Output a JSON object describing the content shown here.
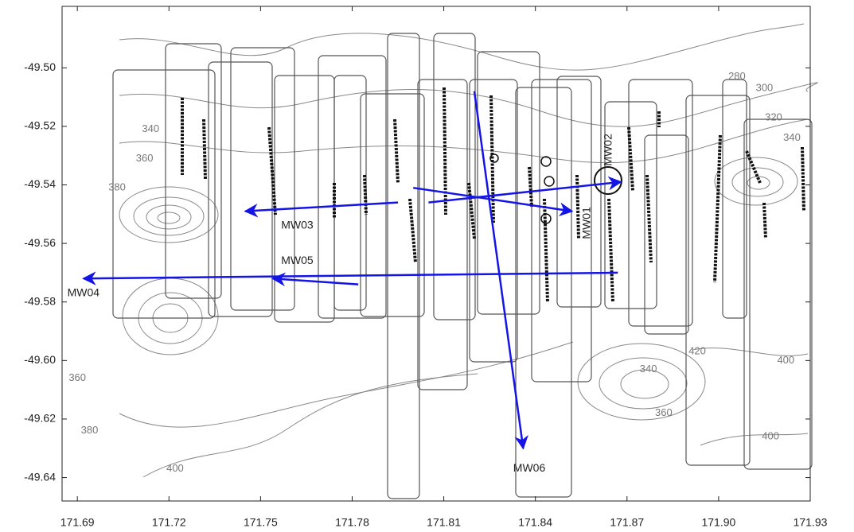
{
  "chart_data": {
    "type": "map",
    "xlim": [
      171.685,
      171.93
    ],
    "ylim": [
      -49.648,
      -49.479
    ],
    "xticks": [
      171.69,
      171.72,
      171.75,
      171.78,
      171.81,
      171.84,
      171.87,
      {
        "value": 171.9,
        "label": "171.90"
      },
      171.93
    ],
    "yticks": [
      {
        "value": -49.5,
        "label": "-49.50"
      },
      -49.52,
      -49.54,
      -49.56,
      -49.58,
      {
        "value": -49.6,
        "label": "-49.60"
      },
      -49.62,
      -49.64
    ],
    "arrow_color": "#1414e6",
    "arrows": [
      {
        "label": "MW01",
        "x0": 171.8,
        "y0": -49.541,
        "x1": 171.852,
        "y1": -49.549,
        "label_x": 171.857,
        "label_y": -49.553,
        "rotate": true
      },
      {
        "label": "MW02",
        "x0": 171.805,
        "y0": -49.546,
        "x1": 171.868,
        "y1": -49.539,
        "label_x": 171.864,
        "label_y": -49.528,
        "rotate": true
      },
      {
        "label": "MW03",
        "x0": 171.795,
        "y0": -49.546,
        "x1": 171.745,
        "y1": -49.549,
        "label_x": 171.762,
        "label_y": -49.554,
        "rotate": false
      },
      {
        "label": "MW04",
        "x0": 171.867,
        "y0": -49.57,
        "x1": 171.692,
        "y1": -49.572,
        "label_x": 171.692,
        "label_y": -49.577,
        "rotate": false
      },
      {
        "label": "MW05",
        "x0": 171.782,
        "y0": -49.574,
        "x1": 171.754,
        "y1": -49.572,
        "label_x": 171.762,
        "label_y": -49.566,
        "rotate": false
      },
      {
        "label": "MW06",
        "x0": 171.82,
        "y0": -49.508,
        "x1": 171.836,
        "y1": -49.63,
        "label_x": 171.838,
        "label_y": -49.637,
        "rotate": false
      }
    ],
    "contour_labels": [
      {
        "label": 280,
        "x": 171.906,
        "y": -49.503
      },
      {
        "label": 300,
        "x": 171.915,
        "y": -49.507
      },
      {
        "label": 320,
        "x": 171.918,
        "y": -49.517
      },
      {
        "label": 340,
        "x": 171.924,
        "y": -49.524
      },
      {
        "label": 340,
        "x": 171.714,
        "y": -49.521
      },
      {
        "label": 360,
        "x": 171.712,
        "y": -49.531
      },
      {
        "label": 380,
        "x": 171.703,
        "y": -49.541
      },
      {
        "label": 360,
        "x": 171.69,
        "y": -49.606
      },
      {
        "label": 380,
        "x": 171.694,
        "y": -49.624
      },
      {
        "label": 400,
        "x": 171.722,
        "y": -49.637
      },
      {
        "label": 420,
        "x": 171.893,
        "y": -49.597
      },
      {
        "label": 400,
        "x": 171.922,
        "y": -49.6
      },
      {
        "label": 340,
        "x": 171.877,
        "y": -49.603
      },
      {
        "label": 360,
        "x": 171.882,
        "y": -49.618
      },
      {
        "label": 400,
        "x": 171.917,
        "y": -49.626
      }
    ]
  }
}
